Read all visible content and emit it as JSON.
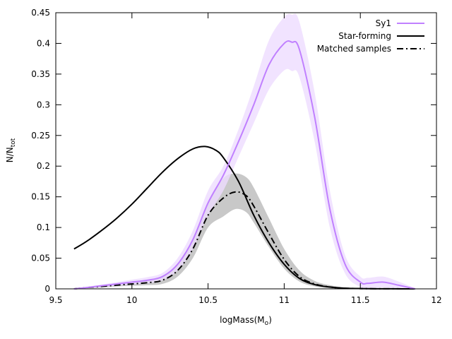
{
  "chart_data": {
    "type": "line",
    "title": "",
    "xlabel": "logMass(M",
    "xlabel_sub": "o",
    "xlabel_suffix": ")",
    "ylabel": "N/N",
    "ylabel_sub": "tot",
    "xlim": [
      9.5,
      12
    ],
    "ylim": [
      0,
      0.45
    ],
    "xticks": [
      9.5,
      10,
      10.5,
      11,
      11.5,
      12
    ],
    "xtick_labels": [
      "9.5",
      "10",
      "10.5",
      "11",
      "11.5",
      "12"
    ],
    "yticks": [
      0,
      0.05,
      0.1,
      0.15,
      0.2,
      0.25,
      0.3,
      0.35,
      0.4,
      0.45
    ],
    "ytick_labels": [
      "0",
      "0.05",
      "0.1",
      "0.15",
      "0.2",
      "0.25",
      "0.3",
      "0.35",
      "0.4",
      "0.45"
    ],
    "grid": false,
    "legend_position": "top-right",
    "series": [
      {
        "name": "Sy1",
        "color": "#c080ff",
        "band_color": "#eedcff",
        "style": "solid",
        "x": [
          9.62,
          9.7,
          9.8,
          9.9,
          10.0,
          10.1,
          10.2,
          10.3,
          10.4,
          10.5,
          10.6,
          10.7,
          10.8,
          10.9,
          11.0,
          11.05,
          11.1,
          11.2,
          11.3,
          11.4,
          11.5,
          11.55,
          11.65,
          11.75,
          11.86
        ],
        "values": [
          0.0,
          0.002,
          0.005,
          0.008,
          0.011,
          0.014,
          0.02,
          0.04,
          0.08,
          0.14,
          0.185,
          0.24,
          0.3,
          0.365,
          0.4,
          0.402,
          0.39,
          0.28,
          0.13,
          0.04,
          0.011,
          0.009,
          0.011,
          0.006,
          0.0
        ],
        "upper": [
          0.0,
          0.003,
          0.007,
          0.011,
          0.015,
          0.019,
          0.026,
          0.05,
          0.095,
          0.16,
          0.2,
          0.26,
          0.33,
          0.405,
          0.443,
          0.447,
          0.435,
          0.32,
          0.16,
          0.055,
          0.02,
          0.018,
          0.02,
          0.012,
          0.001
        ],
        "lower": [
          0.0,
          0.001,
          0.003,
          0.005,
          0.007,
          0.009,
          0.014,
          0.03,
          0.065,
          0.12,
          0.16,
          0.215,
          0.27,
          0.325,
          0.356,
          0.355,
          0.345,
          0.24,
          0.1,
          0.025,
          0.003,
          0.001,
          0.002,
          0.001,
          0.0
        ]
      },
      {
        "name": "Star-forming",
        "color": "#000000",
        "style": "solid",
        "x": [
          9.62,
          9.7,
          9.8,
          9.9,
          10.0,
          10.1,
          10.2,
          10.3,
          10.4,
          10.48,
          10.55,
          10.6,
          10.7,
          10.8,
          10.9,
          11.0,
          11.1,
          11.2,
          11.3,
          11.4,
          11.5,
          11.6,
          11.7,
          11.86
        ],
        "values": [
          0.065,
          0.077,
          0.095,
          0.115,
          0.138,
          0.164,
          0.19,
          0.212,
          0.228,
          0.232,
          0.226,
          0.214,
          0.175,
          0.12,
          0.075,
          0.04,
          0.017,
          0.007,
          0.003,
          0.001,
          0.0005,
          0.0002,
          0.0001,
          0.0
        ]
      },
      {
        "name": "Matched samples",
        "color": "#000000",
        "band_color": "#c8c8c8",
        "style": "dash-dot",
        "x": [
          9.62,
          9.7,
          9.8,
          9.9,
          10.0,
          10.1,
          10.2,
          10.3,
          10.4,
          10.5,
          10.6,
          10.68,
          10.75,
          10.8,
          10.9,
          11.0,
          11.1,
          11.2,
          11.3,
          11.4,
          11.5,
          11.6,
          11.7,
          11.86
        ],
        "values": [
          0.0,
          0.002,
          0.004,
          0.006,
          0.008,
          0.01,
          0.014,
          0.03,
          0.065,
          0.12,
          0.148,
          0.158,
          0.152,
          0.135,
          0.09,
          0.048,
          0.02,
          0.008,
          0.003,
          0.001,
          0.0005,
          0.0002,
          0.0001,
          0.0
        ],
        "upper": [
          0.0,
          0.003,
          0.006,
          0.008,
          0.011,
          0.014,
          0.02,
          0.04,
          0.08,
          0.14,
          0.18,
          0.188,
          0.182,
          0.165,
          0.115,
          0.065,
          0.03,
          0.013,
          0.006,
          0.002,
          0.001,
          0.0005,
          0.0002,
          0.0
        ],
        "lower": [
          0.0,
          0.001,
          0.002,
          0.004,
          0.005,
          0.006,
          0.008,
          0.02,
          0.05,
          0.1,
          0.118,
          0.13,
          0.125,
          0.108,
          0.068,
          0.033,
          0.012,
          0.004,
          0.001,
          0.0003,
          0.0001,
          0.0,
          0.0,
          0.0
        ]
      }
    ]
  }
}
